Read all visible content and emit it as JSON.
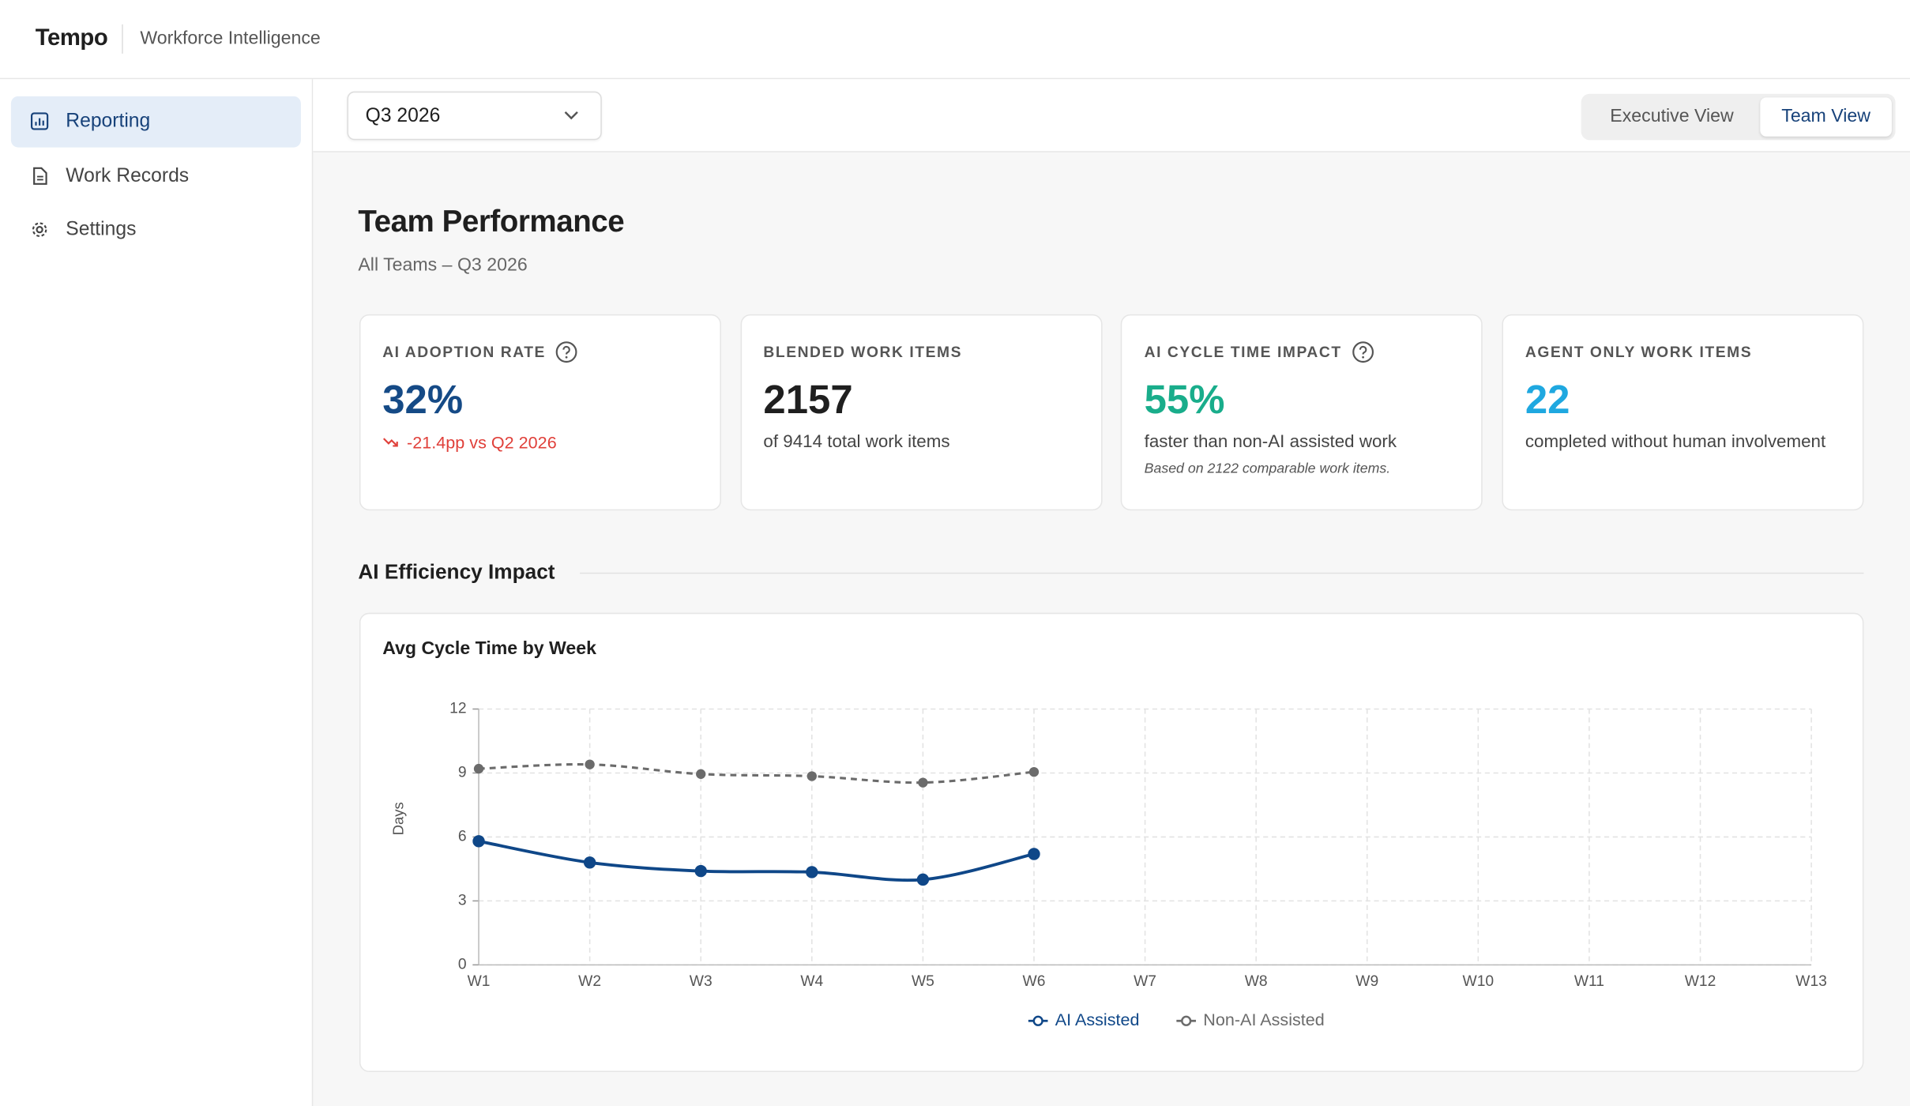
{
  "header": {
    "brand": "Tempo",
    "product": "Workforce Intelligence"
  },
  "sidebar": {
    "items": [
      "Reporting",
      "Work Records",
      "Settings"
    ],
    "active": 0
  },
  "toolbar": {
    "period": "Q3 2026",
    "views": [
      "Executive View",
      "Team View"
    ],
    "active_view": 1
  },
  "page": {
    "title": "Team Performance",
    "subtitle": "All Teams – Q3 2026"
  },
  "cards": [
    {
      "label": "AI ADOPTION RATE",
      "help": true,
      "value": "32%",
      "color": "#154a86",
      "delta": "-21.4pp vs Q2 2026"
    },
    {
      "label": "BLENDED WORK ITEMS",
      "help": false,
      "value": "2157",
      "color": "#1f1f1f",
      "text": "of 9414 total work items"
    },
    {
      "label": "AI CYCLE TIME IMPACT",
      "help": true,
      "value": "55%",
      "color": "#19ad8b",
      "text": "faster than non-AI assisted work",
      "note": "Based on 2122 comparable work items."
    },
    {
      "label": "AGENT ONLY WORK ITEMS",
      "help": false,
      "value": "22",
      "color": "#1fa8e0",
      "text": "completed without human involvement"
    }
  ],
  "section": "AI Efficiency Impact",
  "chart_data": {
    "type": "line",
    "title": "Avg Cycle Time by Week",
    "y_label": "Days",
    "categories": [
      "W1",
      "W2",
      "W3",
      "W4",
      "W5",
      "W6",
      "W7",
      "W8",
      "W9",
      "W10",
      "W11",
      "W12",
      "W13"
    ],
    "ylim": [
      0,
      12
    ],
    "yticks": [
      0,
      3,
      6,
      9,
      12
    ],
    "grid": true,
    "legend": "bottom",
    "series": [
      {
        "name": "AI Assisted",
        "color": "#0f4788",
        "line_style": "solid",
        "values": [
          5.8,
          4.8,
          4.4,
          4.35,
          4.0,
          5.2,
          null,
          null,
          null,
          null,
          null,
          null,
          null
        ]
      },
      {
        "name": "Non-AI Assisted",
        "color": "#6b6b6b",
        "line_style": "dashed",
        "values": [
          9.2,
          9.4,
          8.95,
          8.85,
          8.55,
          9.05,
          null,
          null,
          null,
          null,
          null,
          null,
          null
        ]
      }
    ]
  }
}
